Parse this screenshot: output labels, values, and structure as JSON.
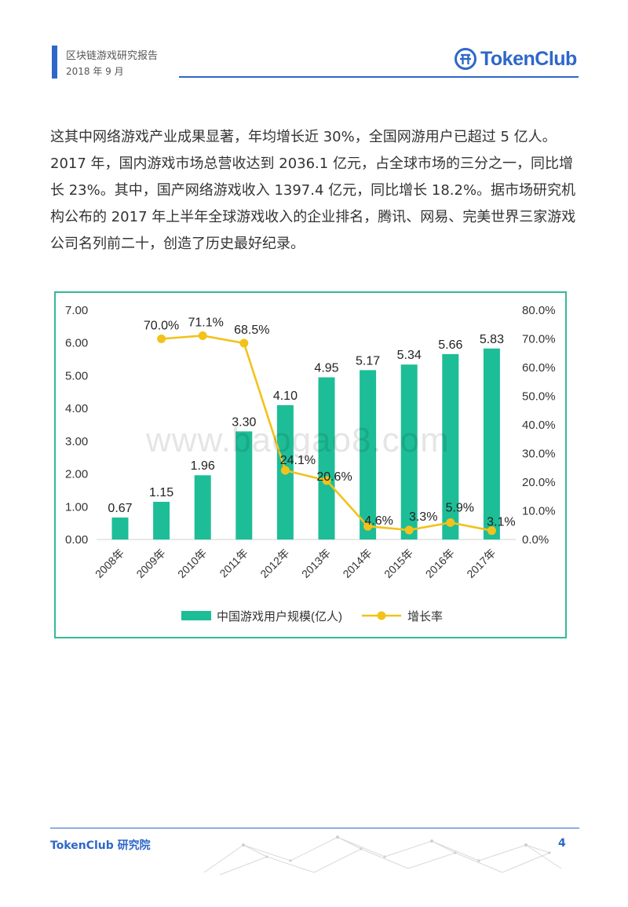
{
  "header": {
    "title": "区块链游戏研究报告",
    "date": "2018 年 9 月",
    "brand": "TokenClub"
  },
  "paragraph": "这其中网络游戏产业成果显著，年均增长近 30%，全国网游用户已超过 5 亿人。2017 年，国内游戏市场总营收达到 2036.1 亿元，占全球市场的三分之一，同比增长 23%。其中，国产网络游戏收入 1397.4 亿元，同比增长 18.2%。据市场研究机构公布的 2017 年上半年全球游戏收入的企业排名，腾讯、网易、完美世界三家游戏公司名列前二十，创造了历史最好纪录。",
  "watermark": "www.baogao8.com",
  "chart_data": {
    "type": "bar+line",
    "categories": [
      "2008年",
      "2009年",
      "2010年",
      "2011年",
      "2012年",
      "2013年",
      "2014年",
      "2015年",
      "2016年",
      "2017年"
    ],
    "series": [
      {
        "name": "中国游戏用户规模(亿人)",
        "type": "bar",
        "axis": "left",
        "values": [
          0.67,
          1.15,
          1.96,
          3.3,
          4.1,
          4.95,
          5.17,
          5.34,
          5.66,
          5.83
        ],
        "labels": [
          "0.67",
          "1.15",
          "1.96",
          "3.30",
          "4.10",
          "4.95",
          "5.17",
          "5.34",
          "5.66",
          "5.83"
        ]
      },
      {
        "name": "增长率",
        "type": "line",
        "axis": "right",
        "values": [
          null,
          70.0,
          71.1,
          68.5,
          24.1,
          20.6,
          4.6,
          3.3,
          5.9,
          3.1
        ],
        "labels": [
          null,
          "70.0%",
          "71.1%",
          "68.5%",
          "24.1%",
          "20.6%",
          "4.6%",
          "3.3%",
          "5.9%",
          "3.1%"
        ]
      }
    ],
    "left_axis": {
      "ylim": [
        0,
        7
      ],
      "ticks": [
        "0.00",
        "1.00",
        "2.00",
        "3.00",
        "4.00",
        "5.00",
        "6.00",
        "7.00"
      ]
    },
    "right_axis": {
      "ylim": [
        0,
        80
      ],
      "ticks": [
        "0.0%",
        "10.0%",
        "20.0%",
        "30.0%",
        "40.0%",
        "50.0%",
        "60.0%",
        "70.0%",
        "80.0%"
      ]
    },
    "legend_position": "bottom",
    "colors": {
      "bar": "#1dbd97",
      "line": "#f2c21b",
      "frame": "#35b99a"
    }
  },
  "footer": {
    "brand": "TokenClub 研究院",
    "page_number": "4"
  }
}
